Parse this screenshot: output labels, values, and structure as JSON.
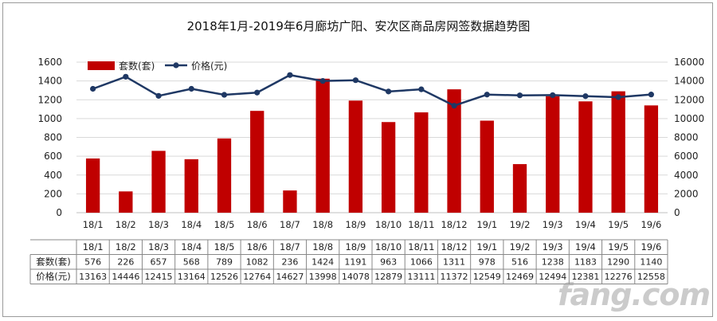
{
  "title": "2018年1月-2019年6月廊坊广阳、安次区商品房网签数据趋势图",
  "watermark": "fang.com",
  "colors": {
    "bar": "#c00000",
    "line": "#1f3864",
    "grid": "#d9d9d9",
    "axis": "#bfbfbf"
  },
  "chart_data": {
    "type": "bar",
    "categories": [
      "18/1",
      "18/2",
      "18/3",
      "18/4",
      "18/5",
      "18/6",
      "18/7",
      "18/8",
      "18/9",
      "18/10",
      "18/11",
      "18/12",
      "19/1",
      "19/2",
      "19/3",
      "19/4",
      "19/5",
      "19/6"
    ],
    "series": [
      {
        "name": "套数(套)",
        "type": "bar",
        "axis": "left",
        "values": [
          576,
          226,
          657,
          568,
          789,
          1082,
          236,
          1424,
          1191,
          963,
          1066,
          1311,
          978,
          516,
          1238,
          1183,
          1290,
          1140
        ]
      },
      {
        "name": "价格(元)",
        "type": "line",
        "axis": "right",
        "values": [
          13163,
          14446,
          12415,
          13164,
          12526,
          12764,
          14627,
          13998,
          14078,
          12879,
          13111,
          11372,
          12549,
          12469,
          12494,
          12381,
          12276,
          12558
        ]
      }
    ],
    "y_left": {
      "min": 0,
      "max": 1600,
      "ticks": [
        "0",
        "200",
        "400",
        "600",
        "800",
        "1000",
        "1200",
        "1400",
        "1600"
      ]
    },
    "y_right": {
      "min": 0,
      "max": 16000,
      "ticks": [
        "0",
        "2000",
        "4000",
        "6000",
        "8000",
        "10000",
        "12000",
        "14000",
        "16000"
      ]
    },
    "legend_position": "top-left",
    "grid": true,
    "table": {
      "row_headers": [
        "套数(套)",
        "价格(元)"
      ],
      "rows": [
        [
          "576",
          "226",
          "657",
          "568",
          "789",
          "1082",
          "236",
          "1424",
          "1191",
          "963",
          "1066",
          "1311",
          "978",
          "516",
          "1238",
          "1183",
          "1290",
          "1140"
        ],
        [
          "13163",
          "14446",
          "12415",
          "13164",
          "12526",
          "12764",
          "14627",
          "13998",
          "14078",
          "12879",
          "13111",
          "11372",
          "12549",
          "12469",
          "12494",
          "12381",
          "12276",
          "12558"
        ]
      ]
    }
  }
}
